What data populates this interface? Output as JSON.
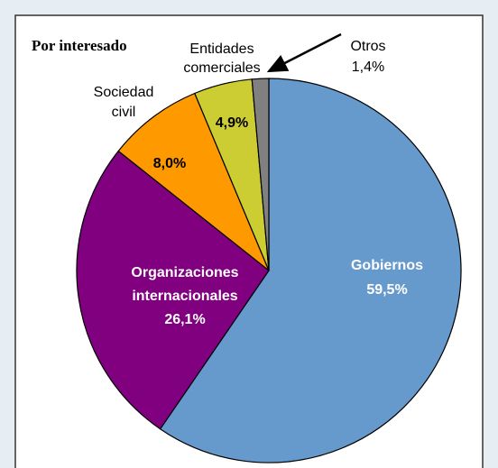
{
  "chart_data": {
    "type": "pie",
    "title": "Por interesado",
    "categories": [
      "Gobiernos",
      "Organizaciones internacionales",
      "Sociedad civil",
      "Entidades comerciales",
      "Otros"
    ],
    "values": [
      59.5,
      26.1,
      8.0,
      4.9,
      1.4
    ],
    "value_labels": [
      "59,5%",
      "26,1%",
      "8,0%",
      "4,9%",
      "1,4%"
    ],
    "colors": [
      "#6699cc",
      "#800080",
      "#ff9900",
      "#cccc33",
      "#808080"
    ]
  }
}
